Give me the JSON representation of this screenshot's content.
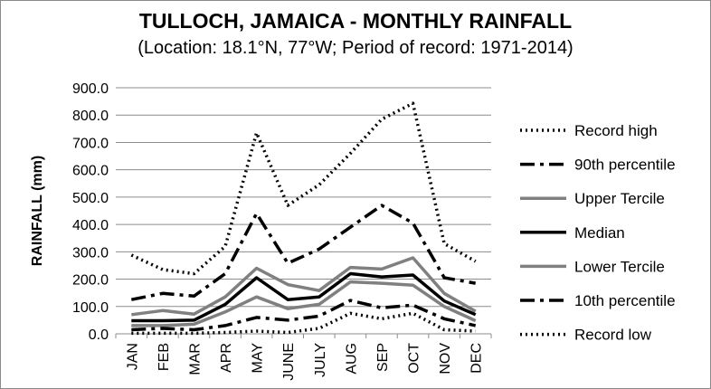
{
  "chart_data": {
    "type": "line",
    "title": "TULLOCH, JAMAICA - MONTHLY RAINFALL",
    "subtitle": "(Location: 18.1°N, 77°W; Period of record: 1971-2014)",
    "ylabel": "RAINFALL (mm)",
    "xlabel": "",
    "ylim": [
      0,
      900
    ],
    "yticks": [
      "0.0",
      "100.0",
      "200.0",
      "300.0",
      "400.0",
      "500.0",
      "600.0",
      "700.0",
      "800.0",
      "900.0"
    ],
    "grid": true,
    "legend_position": "right",
    "categories": [
      "JAN",
      "FEB",
      "MAR",
      "APR",
      "MAY",
      "JUNE",
      "JULY",
      "AUG",
      "SEP",
      "OCT",
      "NOV",
      "DEC"
    ],
    "series": [
      {
        "name": "Record high",
        "style": "dotted",
        "color": "#000000",
        "values": [
          288,
          235,
          220,
          320,
          735,
          470,
          545,
          660,
          785,
          843,
          330,
          265
        ]
      },
      {
        "name": "90th percentile",
        "style": "dashdot",
        "color": "#000000",
        "values": [
          125,
          148,
          138,
          220,
          440,
          258,
          310,
          390,
          470,
          405,
          205,
          185
        ]
      },
      {
        "name": "Upper Tercile",
        "style": "solid",
        "color": "#808080",
        "values": [
          70,
          85,
          72,
          135,
          240,
          180,
          158,
          243,
          237,
          278,
          148,
          82
        ]
      },
      {
        "name": "Median",
        "style": "solid",
        "color": "#000000",
        "values": [
          48,
          48,
          50,
          108,
          205,
          125,
          135,
          220,
          208,
          215,
          120,
          70
        ]
      },
      {
        "name": "Lower Tercile",
        "style": "solid",
        "color": "#808080",
        "values": [
          30,
          30,
          35,
          80,
          135,
          92,
          108,
          190,
          185,
          178,
          100,
          48
        ]
      },
      {
        "name": "10th percentile",
        "style": "dashdot",
        "color": "#000000",
        "values": [
          15,
          20,
          15,
          30,
          60,
          50,
          65,
          122,
          95,
          105,
          55,
          30
        ]
      },
      {
        "name": "Record low",
        "style": "dotted",
        "color": "#000000",
        "values": [
          2,
          2,
          2,
          5,
          10,
          5,
          20,
          75,
          55,
          75,
          15,
          10
        ]
      }
    ]
  }
}
